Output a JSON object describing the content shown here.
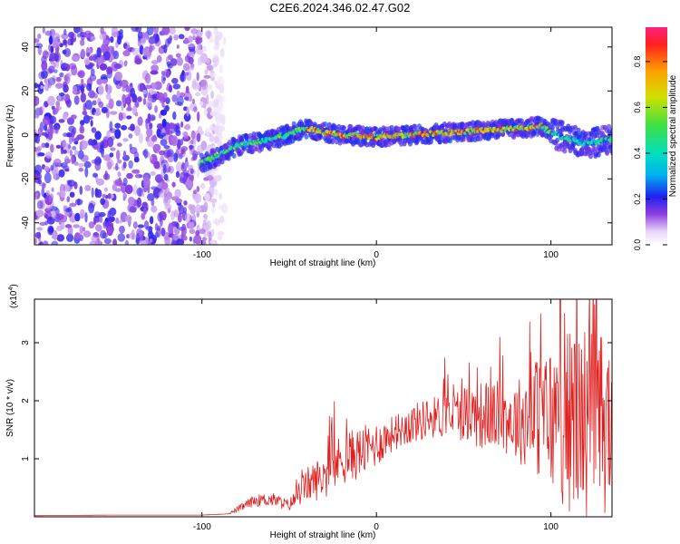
{
  "page_title": "C2E6.2024.346.02.47.G02",
  "chart_data": [
    {
      "type": "heatmap",
      "xlabel": "Height of straight line (km)",
      "ylabel": "Frequency (Hz)",
      "xlim": [
        -196,
        135
      ],
      "ylim": [
        -50,
        49
      ],
      "xticks": [
        -100,
        0,
        100
      ],
      "yticks": [
        -40,
        -20,
        0,
        20,
        40
      ],
      "noise_region_x": [
        -196,
        -87
      ],
      "ridge": {
        "x": [
          -101,
          -90,
          -80,
          -60,
          -40,
          -30,
          -20,
          0,
          20,
          40,
          60,
          80,
          95,
          100,
          110,
          120,
          135
        ],
        "freq": [
          -13,
          -9,
          -5,
          -2,
          3,
          1,
          0,
          -1,
          0,
          1,
          2,
          3,
          4,
          1,
          -2,
          -4,
          -2
        ]
      },
      "colorbar": {
        "label": "Normalized spectral amplitude",
        "range": [
          0,
          0.95
        ],
        "ticks": [
          0.0,
          0.2,
          0.4,
          0.6,
          0.8
        ],
        "tick_labels": [
          "0.0",
          "0.2",
          "0.4",
          "0.6",
          "0.8"
        ]
      }
    },
    {
      "type": "line",
      "xlabel": "Height of straight line (km)",
      "ylabel": "SNR (10 * v/v)",
      "y_multiplier_label": "(x10",
      "y_multiplier_exp": "4",
      "xlim": [
        -196,
        135
      ],
      "ylim": [
        0,
        3.75
      ],
      "xticks": [
        -100,
        0,
        100
      ],
      "yticks": [
        1,
        2,
        3
      ],
      "color": "#e02020",
      "x": [
        -196,
        -150,
        -100,
        -85,
        -80,
        -70,
        -60,
        -50,
        -40,
        -30,
        -20,
        -10,
        0,
        10,
        20,
        30,
        40,
        50,
        60,
        70,
        80,
        90,
        100,
        110,
        120,
        130,
        135
      ],
      "y": [
        0.02,
        0.03,
        0.03,
        0.05,
        0.12,
        0.28,
        0.3,
        0.2,
        0.55,
        0.7,
        1.0,
        1.1,
        1.25,
        1.45,
        1.6,
        1.7,
        1.75,
        1.8,
        1.75,
        1.75,
        1.65,
        1.75,
        1.7,
        1.65,
        1.7,
        1.6,
        1.6
      ],
      "spread": [
        0.0,
        0.0,
        0.0,
        0.0,
        0.05,
        0.1,
        0.12,
        0.1,
        0.3,
        0.4,
        0.45,
        0.45,
        0.4,
        0.3,
        0.35,
        0.35,
        0.4,
        0.5,
        0.6,
        0.6,
        0.7,
        1.0,
        1.3,
        1.6,
        1.7,
        1.6,
        1.5
      ]
    }
  ]
}
